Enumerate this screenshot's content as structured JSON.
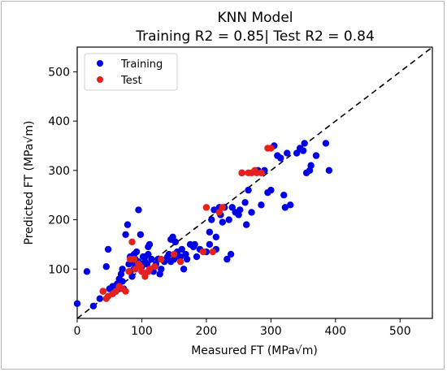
{
  "chart_data": {
    "type": "scatter",
    "title": "KNN Model",
    "subtitle": "Training R2 = 0.85| Test R2 = 0.84",
    "xlabel": "Measured FT (MPa√m)",
    "ylabel": "Predicted FT (MPa√m)",
    "xlim": [
      0,
      550
    ],
    "ylim": [
      0,
      550
    ],
    "xticks": [
      0,
      100,
      200,
      300,
      400,
      500
    ],
    "yticks": [
      100,
      200,
      300,
      400,
      500
    ],
    "legend_position": "top-left",
    "reference_line": "y = x, dashed, black",
    "grid": false,
    "series": [
      {
        "name": "Training",
        "color": "#0000e6",
        "points": [
          [
            0,
            30
          ],
          [
            15,
            95
          ],
          [
            25,
            25
          ],
          [
            35,
            40
          ],
          [
            40,
            55
          ],
          [
            45,
            105
          ],
          [
            48,
            140
          ],
          [
            50,
            60
          ],
          [
            55,
            65
          ],
          [
            55,
            50
          ],
          [
            60,
            55
          ],
          [
            62,
            70
          ],
          [
            65,
            80
          ],
          [
            65,
            60
          ],
          [
            68,
            90
          ],
          [
            70,
            100
          ],
          [
            70,
            75
          ],
          [
            72,
            60
          ],
          [
            75,
            170
          ],
          [
            78,
            190
          ],
          [
            80,
            110
          ],
          [
            82,
            95
          ],
          [
            82,
            125
          ],
          [
            85,
            115
          ],
          [
            85,
            85
          ],
          [
            88,
            100
          ],
          [
            88,
            130
          ],
          [
            90,
            105
          ],
          [
            90,
            120
          ],
          [
            92,
            135
          ],
          [
            95,
            115
          ],
          [
            95,
            220
          ],
          [
            98,
            170
          ],
          [
            100,
            95
          ],
          [
            100,
            105
          ],
          [
            102,
            125
          ],
          [
            105,
            125
          ],
          [
            105,
            115
          ],
          [
            108,
            110
          ],
          [
            110,
            130
          ],
          [
            110,
            145
          ],
          [
            112,
            150
          ],
          [
            115,
            100
          ],
          [
            115,
            120
          ],
          [
            118,
            95
          ],
          [
            120,
            105
          ],
          [
            122,
            110
          ],
          [
            125,
            120
          ],
          [
            128,
            90
          ],
          [
            130,
            100
          ],
          [
            135,
            115
          ],
          [
            138,
            120
          ],
          [
            140,
            125
          ],
          [
            142,
            130
          ],
          [
            145,
            160
          ],
          [
            145,
            115
          ],
          [
            148,
            165
          ],
          [
            150,
            120
          ],
          [
            152,
            155
          ],
          [
            155,
            135
          ],
          [
            158,
            125
          ],
          [
            160,
            125
          ],
          [
            162,
            140
          ],
          [
            165,
            100
          ],
          [
            168,
            130
          ],
          [
            170,
            120
          ],
          [
            175,
            150
          ],
          [
            180,
            145
          ],
          [
            182,
            150
          ],
          [
            185,
            125
          ],
          [
            190,
            140
          ],
          [
            200,
            135
          ],
          [
            205,
            175
          ],
          [
            205,
            150
          ],
          [
            208,
            200
          ],
          [
            212,
            220
          ],
          [
            215,
            165
          ],
          [
            215,
            140
          ],
          [
            220,
            225
          ],
          [
            222,
            210
          ],
          [
            225,
            195
          ],
          [
            228,
            225
          ],
          [
            232,
            120
          ],
          [
            235,
            200
          ],
          [
            238,
            130
          ],
          [
            240,
            225
          ],
          [
            245,
            215
          ],
          [
            250,
            210
          ],
          [
            252,
            220
          ],
          [
            255,
            295
          ],
          [
            260,
            235
          ],
          [
            262,
            190
          ],
          [
            265,
            260
          ],
          [
            270,
            215
          ],
          [
            280,
            300
          ],
          [
            285,
            230
          ],
          [
            290,
            300
          ],
          [
            295,
            255
          ],
          [
            300,
            260
          ],
          [
            305,
            350
          ],
          [
            310,
            330
          ],
          [
            315,
            325
          ],
          [
            320,
            250
          ],
          [
            322,
            225
          ],
          [
            325,
            335
          ],
          [
            330,
            230
          ],
          [
            340,
            335
          ],
          [
            345,
            345
          ],
          [
            350,
            340
          ],
          [
            352,
            355
          ],
          [
            355,
            295
          ],
          [
            360,
            300
          ],
          [
            362,
            310
          ],
          [
            370,
            330
          ],
          [
            385,
            355
          ],
          [
            390,
            300
          ]
        ]
      },
      {
        "name": "Test",
        "color": "#e8201c",
        "points": [
          [
            40,
            55
          ],
          [
            45,
            40
          ],
          [
            48,
            45
          ],
          [
            55,
            50
          ],
          [
            60,
            55
          ],
          [
            65,
            65
          ],
          [
            70,
            60
          ],
          [
            75,
            55
          ],
          [
            80,
            95
          ],
          [
            82,
            120
          ],
          [
            85,
            155
          ],
          [
            88,
            120
          ],
          [
            90,
            100
          ],
          [
            95,
            110
          ],
          [
            98,
            105
          ],
          [
            100,
            95
          ],
          [
            105,
            85
          ],
          [
            110,
            95
          ],
          [
            112,
            100
          ],
          [
            120,
            105
          ],
          [
            130,
            120
          ],
          [
            150,
            130
          ],
          [
            160,
            115
          ],
          [
            195,
            135
          ],
          [
            200,
            225
          ],
          [
            210,
            135
          ],
          [
            220,
            215
          ],
          [
            225,
            225
          ],
          [
            255,
            295
          ],
          [
            265,
            295
          ],
          [
            270,
            295
          ],
          [
            275,
            300
          ],
          [
            278,
            295
          ],
          [
            285,
            295
          ],
          [
            295,
            345
          ],
          [
            300,
            345
          ]
        ]
      }
    ]
  }
}
